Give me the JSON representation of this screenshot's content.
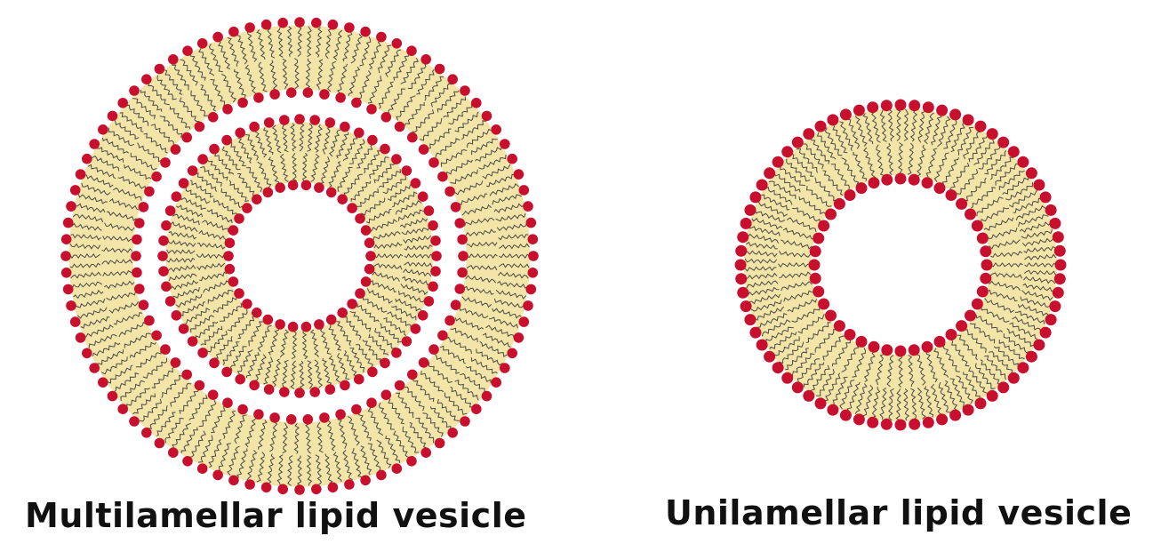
{
  "labels": {
    "multilamellar": "Multilamellar lipid vesicle",
    "unilamellar": "Unilamellar lipid vesicle"
  },
  "colors": {
    "lipid_head": "#c8102e",
    "bilayer_core": "#f3e4a8",
    "lipid_tail": "#2a2f3a",
    "background": "#ffffff"
  }
}
